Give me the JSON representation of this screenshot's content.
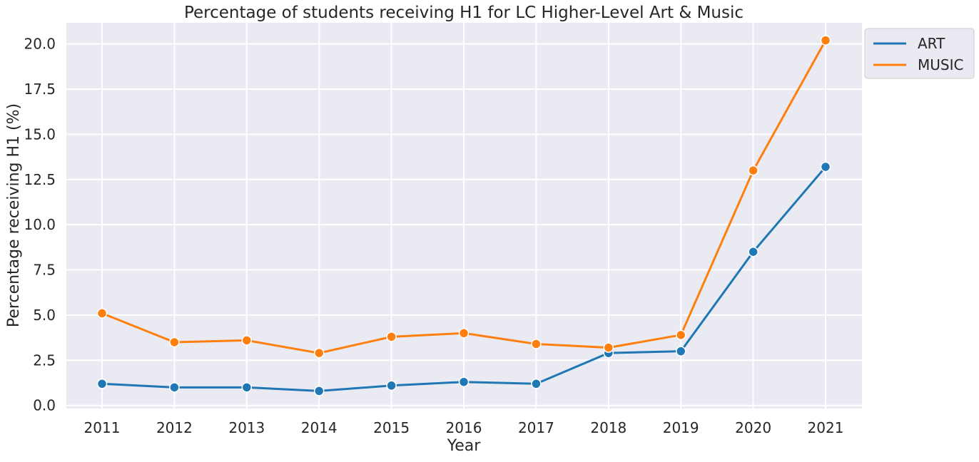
{
  "chart_data": {
    "type": "line",
    "title": "Percentage of students receiving H1 for LC Higher-Level Art & Music",
    "xlabel": "Year",
    "ylabel": "Percentage receiving H1 (%)",
    "categories": [
      "2011",
      "2012",
      "2013",
      "2014",
      "2015",
      "2016",
      "2017",
      "2018",
      "2019",
      "2020",
      "2021"
    ],
    "yticks": [
      "0.0",
      "2.5",
      "5.0",
      "7.5",
      "10.0",
      "12.5",
      "15.0",
      "17.5",
      "20.0"
    ],
    "ylim": [
      -0.17,
      21.17
    ],
    "grid": true,
    "legend_placement": "outside top-right",
    "series": [
      {
        "name": "ART",
        "color": "#1f77b4",
        "values": [
          1.2,
          1.0,
          1.0,
          0.8,
          1.1,
          1.3,
          1.2,
          2.9,
          3.0,
          8.5,
          13.2
        ]
      },
      {
        "name": "MUSIC",
        "color": "#ff7f0e",
        "values": [
          5.1,
          3.5,
          3.6,
          2.9,
          3.8,
          4.0,
          3.4,
          3.2,
          3.9,
          13.0,
          20.2
        ]
      }
    ],
    "background_color": "#eaeaf2"
  }
}
